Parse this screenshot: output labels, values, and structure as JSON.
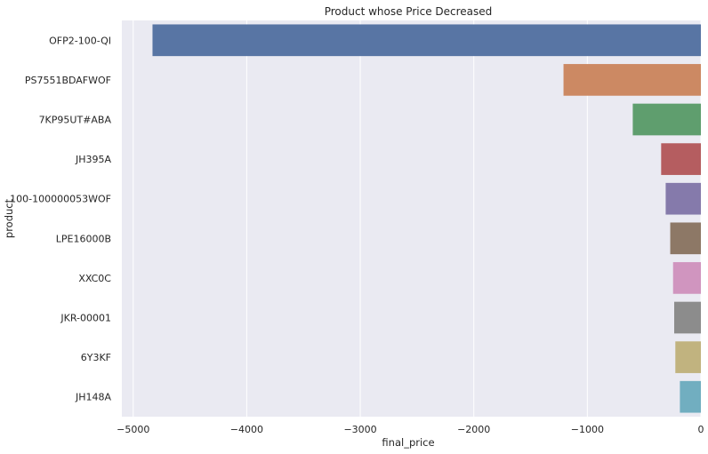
{
  "chart_data": {
    "type": "bar",
    "orientation": "horizontal",
    "title": "Product whose Price Decreased",
    "xlabel": "final_price",
    "ylabel": "product",
    "xlim": [
      -5100,
      0
    ],
    "xticks": [
      -5000,
      -4000,
      -3000,
      -2000,
      -1000,
      0
    ],
    "xtick_labels": [
      "−5000",
      "−4000",
      "−3000",
      "−2000",
      "−1000",
      "0"
    ],
    "grid": true,
    "categories": [
      "OFP2-100-QI",
      "PS7551BDAFWOF",
      "7KP95UT#ABA",
      "JH395A",
      "100-100000053WOF",
      "LPE16000B",
      "XXC0C",
      "JKR-00001",
      "6Y3KF",
      "JH148A"
    ],
    "values": [
      -4830,
      -1210,
      -600,
      -350,
      -310,
      -270,
      -245,
      -235,
      -225,
      -185
    ],
    "colors": [
      "#5875a4",
      "#cc8963",
      "#5f9e6e",
      "#b55d60",
      "#857aab",
      "#8d7866",
      "#d095bf",
      "#8c8c8c",
      "#c1b37f",
      "#71aec0"
    ]
  },
  "style": {
    "plot_background": "#eaeaf2",
    "grid_color": "#ffffff"
  }
}
